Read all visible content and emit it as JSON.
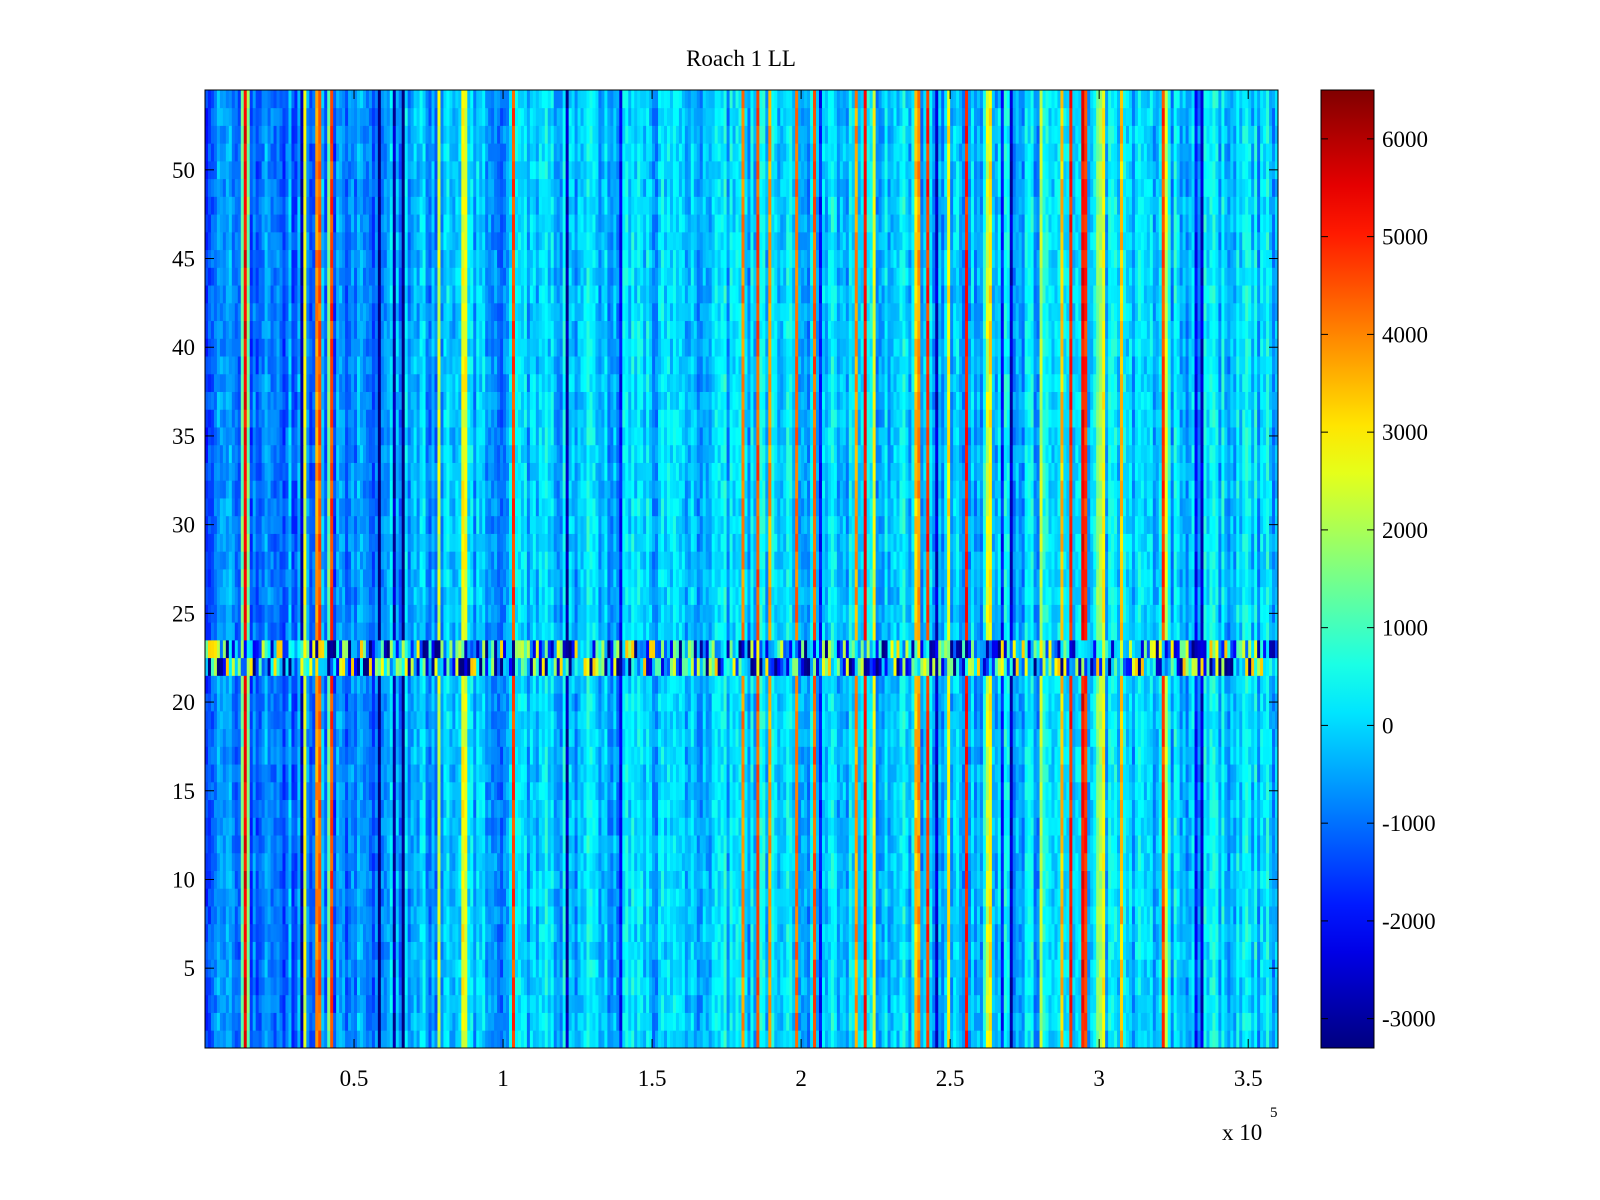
{
  "chart_data": {
    "type": "heatmap",
    "title": "Roach 1 LL",
    "xlabel": "",
    "ylabel": "",
    "x_multiplier_label": {
      "base": "x 10",
      "exponent": "5"
    },
    "xlim": [
      0,
      3.6
    ],
    "ylim": [
      0.5,
      54.5
    ],
    "x_ticks": [
      0.5,
      1,
      1.5,
      2,
      2.5,
      3,
      3.5
    ],
    "x_tick_labels": [
      "0.5",
      "1",
      "1.5",
      "2",
      "2.5",
      "3",
      "3.5"
    ],
    "y_ticks": [
      5,
      10,
      15,
      20,
      25,
      30,
      35,
      40,
      45,
      50
    ],
    "y_tick_labels": [
      "5",
      "10",
      "15",
      "20",
      "25",
      "30",
      "35",
      "40",
      "45",
      "50"
    ],
    "rows": 54,
    "colormap": "jet",
    "clim": [
      -3300,
      6500
    ],
    "colorbar": {
      "placement": "right",
      "ticks": [
        6000,
        5000,
        4000,
        3000,
        2000,
        1000,
        0,
        -1000,
        -2000,
        -3000
      ],
      "tick_labels": [
        "6000",
        "5000",
        "4000",
        "3000",
        "2000",
        "1000",
        "0",
        "-1000",
        "-2000",
        "-3000"
      ]
    },
    "grid": false,
    "features": {
      "background_value": 0,
      "bright_bands_x": [
        0.135,
        0.43,
        0.87,
        2.63,
        3.01
      ],
      "noisy_rows": [
        22,
        23
      ]
    }
  }
}
